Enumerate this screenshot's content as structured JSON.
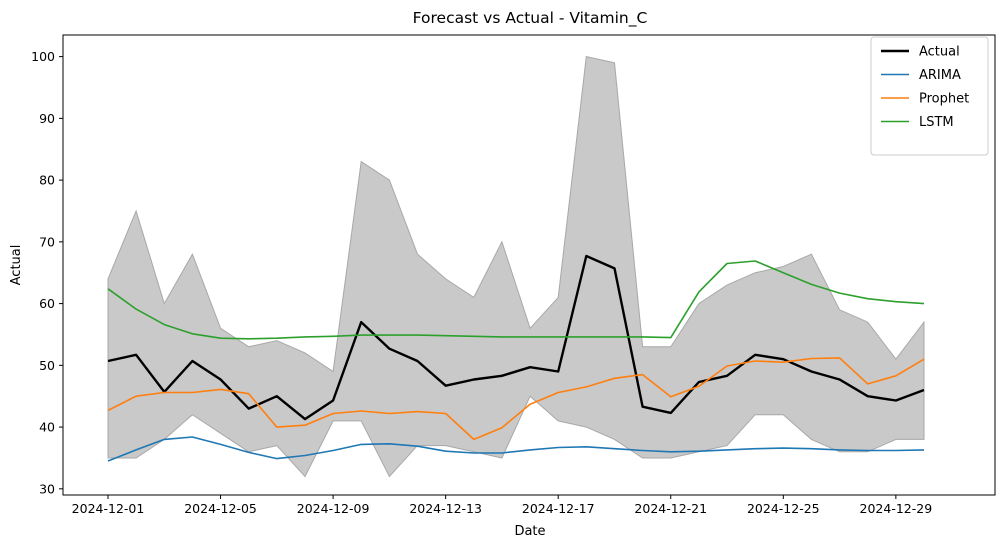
{
  "chart_data": {
    "type": "line",
    "title": "Forecast vs Actual - Vitamin_C",
    "xlabel": "Date",
    "ylabel": "Actual",
    "ylim": [
      29,
      103.5
    ],
    "yticks": [
      30,
      40,
      50,
      60,
      70,
      80,
      90,
      100
    ],
    "x": [
      "2024-12-01",
      "2024-12-02",
      "2024-12-03",
      "2024-12-04",
      "2024-12-05",
      "2024-12-06",
      "2024-12-07",
      "2024-12-08",
      "2024-12-09",
      "2024-12-10",
      "2024-12-11",
      "2024-12-12",
      "2024-12-13",
      "2024-12-14",
      "2024-12-15",
      "2024-12-16",
      "2024-12-17",
      "2024-12-18",
      "2024-12-19",
      "2024-12-20",
      "2024-12-21",
      "2024-12-22",
      "2024-12-23",
      "2024-12-24",
      "2024-12-25",
      "2024-12-26",
      "2024-12-27",
      "2024-12-28",
      "2024-12-29",
      "2024-12-30"
    ],
    "xticks": [
      "2024-12-01",
      "2024-12-05",
      "2024-12-09",
      "2024-12-13",
      "2024-12-17",
      "2024-12-21",
      "2024-12-25",
      "2024-12-29"
    ],
    "grid": false,
    "legend_position": "top-right",
    "band": {
      "lower": [
        35,
        35,
        38,
        42,
        39,
        36,
        37,
        32,
        41,
        41,
        32,
        37,
        37,
        36,
        35,
        45,
        41,
        40,
        38,
        35,
        35,
        36,
        37,
        42,
        42,
        38,
        36,
        36,
        38,
        38
      ],
      "upper": [
        64,
        75,
        60,
        68,
        56,
        53,
        54,
        52,
        49,
        83,
        80,
        68,
        64,
        61,
        70,
        56,
        61,
        100,
        99,
        53,
        53,
        60,
        63,
        65,
        66,
        68,
        59,
        57,
        51,
        57
      ],
      "color": "#c9c9c9"
    },
    "series": [
      {
        "name": "Actual",
        "color": "#000000",
        "values": [
          50.7,
          51.7,
          45.7,
          50.7,
          47.7,
          43.0,
          45.0,
          41.3,
          44.3,
          57.0,
          52.7,
          50.7,
          46.7,
          47.7,
          48.3,
          49.7,
          49.0,
          67.7,
          65.7,
          43.3,
          42.3,
          47.3,
          48.3,
          51.7,
          51.0,
          49.0,
          47.7,
          45.0,
          44.3,
          46.0
        ]
      },
      {
        "name": "ARIMA",
        "color": "#1f77b4",
        "values": [
          34.5,
          36.3,
          38.0,
          38.4,
          37.2,
          35.9,
          34.9,
          35.4,
          36.2,
          37.2,
          37.3,
          36.9,
          36.1,
          35.8,
          35.8,
          36.3,
          36.7,
          36.8,
          36.5,
          36.2,
          36.0,
          36.1,
          36.3,
          36.5,
          36.6,
          36.5,
          36.3,
          36.2,
          36.2,
          36.3
        ]
      },
      {
        "name": "Prophet",
        "color": "#ff7f0e",
        "values": [
          42.7,
          45.0,
          45.6,
          45.6,
          46.1,
          45.4,
          40.0,
          40.3,
          42.2,
          42.6,
          42.2,
          42.5,
          42.2,
          38.0,
          39.9,
          43.7,
          45.6,
          46.5,
          47.9,
          48.5,
          44.9,
          46.6,
          49.9,
          50.7,
          50.5,
          51.1,
          51.2,
          47.0,
          48.3,
          51.0
        ]
      },
      {
        "name": "LSTM",
        "color": "#2ca02c",
        "values": [
          62.4,
          59.1,
          56.6,
          55.1,
          54.4,
          54.3,
          54.4,
          54.6,
          54.7,
          54.9,
          54.9,
          54.9,
          54.8,
          54.7,
          54.6,
          54.6,
          54.6,
          54.6,
          54.6,
          54.6,
          54.5,
          61.9,
          66.5,
          66.9,
          65.0,
          63.1,
          61.7,
          60.8,
          60.3,
          60.0
        ]
      }
    ]
  }
}
